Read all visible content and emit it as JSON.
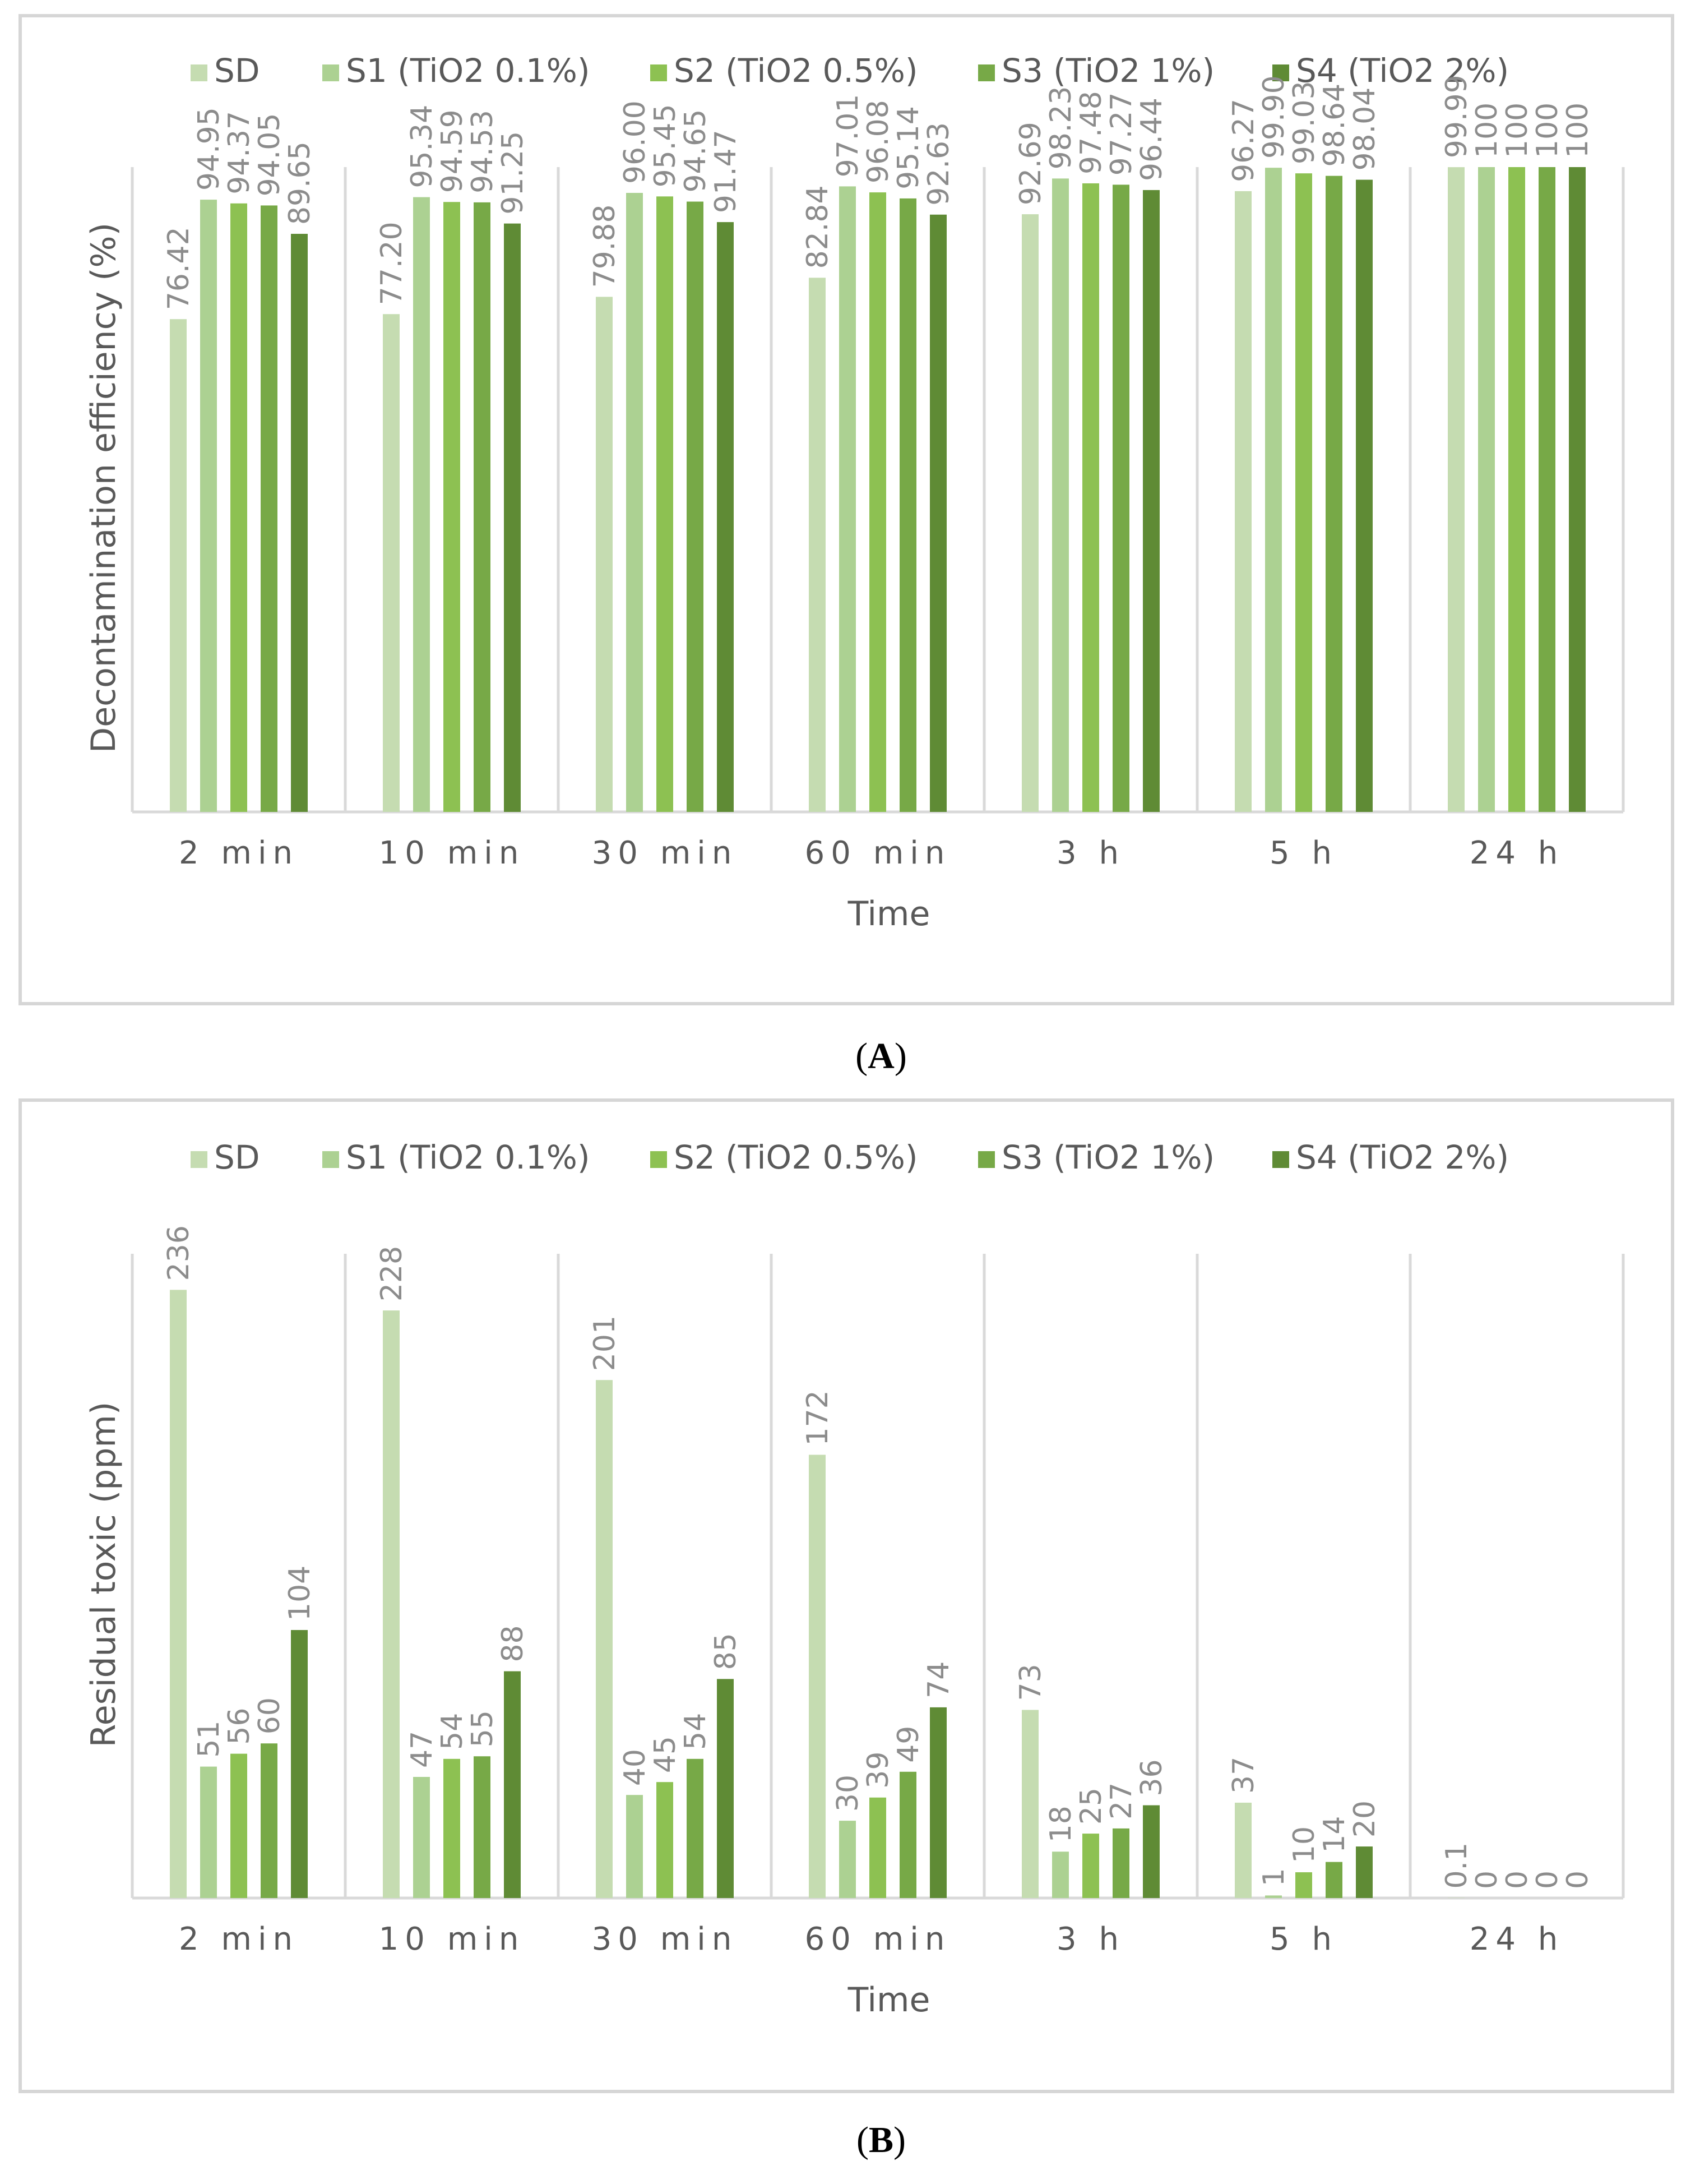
{
  "colors": {
    "SD": "#c5dcb1",
    "S1": "#acd192",
    "S2": "#8dc152",
    "S3": "#77a947",
    "S4": "#5f8b35"
  },
  "chart_data": [
    {
      "type": "bar",
      "panel": "(A)",
      "panel_letter": "A",
      "title": "",
      "xlabel": "Time",
      "ylabel": "Decontamination efficiency (%)",
      "ylim": [
        0,
        100
      ],
      "grid": false,
      "legend_position": "top",
      "categories": [
        "2 min",
        "10 min",
        "30 min",
        "60 min",
        "3 h",
        "5 h",
        "24 h"
      ],
      "series": [
        {
          "name": "SD",
          "values": [
            76.42,
            77.2,
            79.88,
            82.84,
            92.69,
            96.27,
            99.99
          ],
          "labels": [
            "76.42",
            "77.20",
            "79.88",
            "82.84",
            "92.69",
            "96.27",
            "99.99"
          ]
        },
        {
          "name": "S1 (TiO2 0.1%)",
          "values": [
            94.95,
            95.34,
            96.0,
            97.01,
            98.23,
            99.9,
            100
          ],
          "labels": [
            "94.95",
            "95.34",
            "96.00",
            "97.01",
            "98.23",
            "99.90",
            "100"
          ]
        },
        {
          "name": "S2 (TiO2 0.5%)",
          "values": [
            94.37,
            94.59,
            95.45,
            96.08,
            97.48,
            99.03,
            100
          ],
          "labels": [
            "94.37",
            "94.59",
            "95.45",
            "96.08",
            "97.48",
            "99.03",
            "100"
          ]
        },
        {
          "name": "S3 (TiO2 1%)",
          "values": [
            94.05,
            94.53,
            94.65,
            95.14,
            97.27,
            98.64,
            100
          ],
          "labels": [
            "94.05",
            "94.53",
            "94.65",
            "95.14",
            "97.27",
            "98.64",
            "100"
          ]
        },
        {
          "name": "S4 (TiO2 2%)",
          "values": [
            89.65,
            91.25,
            91.47,
            92.63,
            96.44,
            98.04,
            100
          ],
          "labels": [
            "89.65",
            "91.25",
            "91.47",
            "92.63",
            "96.44",
            "98.04",
            "100"
          ]
        }
      ]
    },
    {
      "type": "bar",
      "panel": "(B)",
      "panel_letter": "B",
      "title": "",
      "xlabel": "Time",
      "ylabel": "Residual toxic (ppm)",
      "ylim": [
        0,
        250
      ],
      "grid": false,
      "legend_position": "top",
      "categories": [
        "2 min",
        "10 min",
        "30 min",
        "60 min",
        "3 h",
        "5 h",
        "24 h"
      ],
      "series": [
        {
          "name": "SD",
          "values": [
            236,
            228,
            201,
            172,
            73,
            37,
            0.1
          ],
          "labels": [
            "236",
            "228",
            "201",
            "172",
            "73",
            "37",
            "0.1"
          ]
        },
        {
          "name": "S1 (TiO2 0.1%)",
          "values": [
            51,
            47,
            40,
            30,
            18,
            1,
            0
          ],
          "labels": [
            "51",
            "47",
            "40",
            "30",
            "18",
            "1",
            "0"
          ]
        },
        {
          "name": "S2 (TiO2 0.5%)",
          "values": [
            56,
            54,
            45,
            39,
            25,
            10,
            0
          ],
          "labels": [
            "56",
            "54",
            "45",
            "39",
            "25",
            "10",
            "0"
          ]
        },
        {
          "name": "S3 (TiO2 1%)",
          "values": [
            60,
            55,
            54,
            49,
            27,
            14,
            0
          ],
          "labels": [
            "60",
            "55",
            "54",
            "49",
            "27",
            "14",
            "0"
          ]
        },
        {
          "name": "S4 (TiO2 2%)",
          "values": [
            104,
            88,
            85,
            74,
            36,
            20,
            0
          ],
          "labels": [
            "104",
            "88",
            "85",
            "74",
            "36",
            "20",
            "0"
          ]
        }
      ]
    }
  ]
}
